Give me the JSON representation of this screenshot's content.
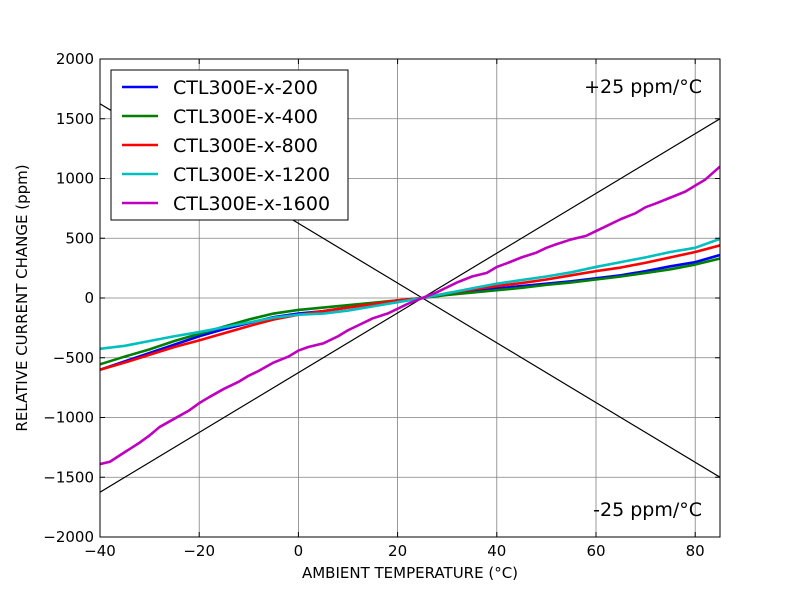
{
  "chart_data": {
    "type": "line",
    "xlabel": "AMBIENT TEMPERATURE (°C)",
    "ylabel": "RELATIVE CURRENT CHANGE (ppm)",
    "xlim": [
      -40,
      85
    ],
    "ylim": [
      -2000,
      2000
    ],
    "x_ticks": [
      -40,
      -20,
      0,
      20,
      40,
      60,
      80
    ],
    "x_tick_labels": [
      "−40",
      "−20",
      "0",
      "20",
      "40",
      "60",
      "80"
    ],
    "y_ticks": [
      -2000,
      -1500,
      -1000,
      -500,
      0,
      500,
      1000,
      1500,
      2000
    ],
    "y_tick_labels": [
      "−2000",
      "−1500",
      "−1000",
      "−500",
      "0",
      "500",
      "1000",
      "1500",
      "2000"
    ],
    "grid": true,
    "legend_placement": "top-left",
    "series": [
      {
        "name": "CTL300E-x-200",
        "color": "#0000ff",
        "x": [
          -40,
          -35,
          -30,
          -25,
          -20,
          -15,
          -10,
          -5,
          0,
          5,
          10,
          15,
          20,
          25,
          30,
          35,
          40,
          45,
          50,
          55,
          60,
          65,
          70,
          75,
          80,
          85
        ],
        "y": [
          -600,
          -530,
          -460,
          -390,
          -320,
          -260,
          -210,
          -160,
          -130,
          -110,
          -80,
          -50,
          -20,
          0,
          30,
          55,
          80,
          100,
          120,
          140,
          165,
          190,
          225,
          265,
          300,
          360
        ]
      },
      {
        "name": "CTL300E-x-400",
        "color": "#008000",
        "x": [
          -40,
          -35,
          -30,
          -25,
          -20,
          -15,
          -10,
          -5,
          0,
          5,
          10,
          15,
          20,
          25,
          30,
          35,
          40,
          45,
          50,
          55,
          60,
          65,
          70,
          75,
          80,
          85
        ],
        "y": [
          -555,
          -490,
          -430,
          -360,
          -300,
          -240,
          -180,
          -130,
          -100,
          -80,
          -60,
          -40,
          -20,
          0,
          25,
          45,
          65,
          85,
          110,
          130,
          155,
          180,
          210,
          240,
          280,
          330
        ]
      },
      {
        "name": "CTL300E-x-800",
        "color": "#ff0000",
        "x": [
          -40,
          -35,
          -30,
          -25,
          -20,
          -15,
          -10,
          -5,
          0,
          5,
          10,
          15,
          20,
          25,
          30,
          35,
          40,
          45,
          50,
          55,
          60,
          65,
          70,
          75,
          80,
          85
        ],
        "y": [
          -600,
          -540,
          -475,
          -410,
          -355,
          -295,
          -235,
          -180,
          -140,
          -110,
          -80,
          -50,
          -20,
          0,
          40,
          70,
          100,
          125,
          155,
          190,
          225,
          255,
          295,
          340,
          385,
          440
        ]
      },
      {
        "name": "CTL300E-x-1200",
        "color": "#00bfbf",
        "x": [
          -40,
          -35,
          -30,
          -25,
          -20,
          -15,
          -10,
          -5,
          0,
          5,
          10,
          15,
          20,
          25,
          30,
          35,
          40,
          45,
          50,
          55,
          60,
          65,
          70,
          75,
          80,
          85
        ],
        "y": [
          -425,
          -400,
          -360,
          -320,
          -285,
          -245,
          -205,
          -165,
          -140,
          -130,
          -105,
          -70,
          -35,
          0,
          40,
          80,
          120,
          150,
          180,
          215,
          260,
          300,
          340,
          385,
          420,
          495
        ]
      },
      {
        "name": "CTL300E-x-1600",
        "color": "#bf00bf",
        "x": [
          -40,
          -38,
          -35,
          -32,
          -30,
          -28,
          -25,
          -22,
          -20,
          -18,
          -15,
          -12,
          -10,
          -8,
          -5,
          -2,
          0,
          2,
          5,
          8,
          10,
          12,
          15,
          18,
          20,
          22,
          25,
          28,
          30,
          32,
          35,
          38,
          40,
          42,
          45,
          48,
          50,
          52,
          55,
          58,
          60,
          62,
          65,
          68,
          70,
          72,
          75,
          78,
          80,
          82,
          85
        ],
        "y": [
          -1390,
          -1370,
          -1290,
          -1210,
          -1150,
          -1080,
          -1010,
          -940,
          -880,
          -830,
          -760,
          -700,
          -650,
          -610,
          -540,
          -490,
          -440,
          -410,
          -380,
          -320,
          -270,
          -230,
          -170,
          -130,
          -90,
          -50,
          0,
          50,
          90,
          130,
          180,
          210,
          260,
          290,
          340,
          380,
          420,
          450,
          490,
          520,
          560,
          600,
          660,
          710,
          760,
          790,
          840,
          890,
          940,
          990,
          1100
        ]
      }
    ],
    "reference_lines": [
      {
        "x": [
          -40,
          85
        ],
        "y": [
          -1625,
          1500
        ]
      },
      {
        "x": [
          -40,
          85
        ],
        "y": [
          1625,
          -1500
        ]
      }
    ],
    "annotations": [
      {
        "text": "+25 ppm/°C"
      },
      {
        "text": "-25 ppm/°C"
      }
    ]
  }
}
